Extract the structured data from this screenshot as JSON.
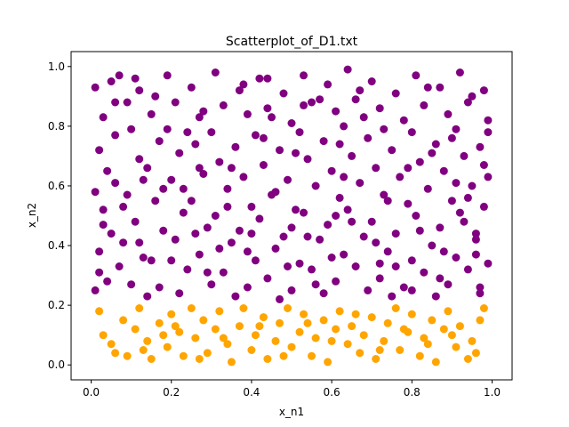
{
  "chart_data": {
    "type": "scatter",
    "title": "Scatterplot_of_D1.txt",
    "xlabel": "x_n1",
    "ylabel": "x_n2",
    "xlim": [
      -0.05,
      1.05
    ],
    "ylim": [
      -0.05,
      1.05
    ],
    "xticks": [
      0.0,
      0.2,
      0.4,
      0.6,
      0.8,
      1.0
    ],
    "xtick_labels": [
      "0.0",
      "0.2",
      "0.4",
      "0.6",
      "0.8",
      "1.0"
    ],
    "yticks": [
      0.0,
      0.2,
      0.4,
      0.6,
      0.8,
      1.0
    ],
    "ytick_labels": [
      "0.0",
      "0.2",
      "0.4",
      "0.6",
      "0.8",
      "1.0"
    ],
    "grid": false,
    "legend": "none",
    "series": [
      {
        "color": "#800080",
        "points": [
          [
            0.01,
            0.93
          ],
          [
            0.03,
            0.83
          ],
          [
            0.05,
            0.95
          ],
          [
            0.07,
            0.97
          ],
          [
            0.09,
            0.88
          ],
          [
            0.02,
            0.72
          ],
          [
            0.04,
            0.65
          ],
          [
            0.01,
            0.58
          ],
          [
            0.06,
            0.61
          ],
          [
            0.03,
            0.52
          ],
          [
            0.05,
            0.44
          ],
          [
            0.02,
            0.38
          ],
          [
            0.07,
            0.33
          ],
          [
            0.04,
            0.28
          ],
          [
            0.01,
            0.25
          ],
          [
            0.08,
            0.41
          ],
          [
            0.1,
            0.79
          ],
          [
            0.12,
            0.69
          ],
          [
            0.09,
            0.57
          ],
          [
            0.11,
            0.48
          ],
          [
            0.13,
            0.36
          ],
          [
            0.1,
            0.27
          ],
          [
            0.14,
            0.23
          ],
          [
            0.12,
            0.92
          ],
          [
            0.15,
            0.84
          ],
          [
            0.17,
            0.75
          ],
          [
            0.14,
            0.66
          ],
          [
            0.16,
            0.55
          ],
          [
            0.18,
            0.45
          ],
          [
            0.15,
            0.35
          ],
          [
            0.17,
            0.26
          ],
          [
            0.19,
            0.97
          ],
          [
            0.21,
            0.88
          ],
          [
            0.19,
            0.79
          ],
          [
            0.22,
            0.71
          ],
          [
            0.2,
            0.62
          ],
          [
            0.23,
            0.51
          ],
          [
            0.21,
            0.42
          ],
          [
            0.24,
            0.32
          ],
          [
            0.22,
            0.24
          ],
          [
            0.25,
            0.93
          ],
          [
            0.27,
            0.83
          ],
          [
            0.26,
            0.74
          ],
          [
            0.28,
            0.64
          ],
          [
            0.25,
            0.55
          ],
          [
            0.29,
            0.46
          ],
          [
            0.27,
            0.37
          ],
          [
            0.3,
            0.27
          ],
          [
            0.31,
            0.98
          ],
          [
            0.33,
            0.87
          ],
          [
            0.3,
            0.78
          ],
          [
            0.32,
            0.68
          ],
          [
            0.34,
            0.59
          ],
          [
            0.31,
            0.5
          ],
          [
            0.35,
            0.41
          ],
          [
            0.33,
            0.31
          ],
          [
            0.36,
            0.23
          ],
          [
            0.37,
            0.92
          ],
          [
            0.39,
            0.84
          ],
          [
            0.36,
            0.73
          ],
          [
            0.38,
            0.63
          ],
          [
            0.4,
            0.53
          ],
          [
            0.37,
            0.45
          ],
          [
            0.41,
            0.35
          ],
          [
            0.39,
            0.26
          ],
          [
            0.42,
            0.96
          ],
          [
            0.44,
            0.86
          ],
          [
            0.41,
            0.77
          ],
          [
            0.43,
            0.67
          ],
          [
            0.45,
            0.57
          ],
          [
            0.42,
            0.49
          ],
          [
            0.46,
            0.39
          ],
          [
            0.44,
            0.29
          ],
          [
            0.47,
            0.22
          ],
          [
            0.48,
            0.91
          ],
          [
            0.5,
            0.81
          ],
          [
            0.47,
            0.72
          ],
          [
            0.49,
            0.62
          ],
          [
            0.51,
            0.52
          ],
          [
            0.48,
            0.43
          ],
          [
            0.52,
            0.34
          ],
          [
            0.5,
            0.25
          ],
          [
            0.53,
            0.97
          ],
          [
            0.55,
            0.88
          ],
          [
            0.52,
            0.78
          ],
          [
            0.54,
            0.69
          ],
          [
            0.56,
            0.6
          ],
          [
            0.53,
            0.51
          ],
          [
            0.57,
            0.42
          ],
          [
            0.55,
            0.32
          ],
          [
            0.58,
            0.24
          ],
          [
            0.59,
            0.94
          ],
          [
            0.61,
            0.85
          ],
          [
            0.58,
            0.75
          ],
          [
            0.6,
            0.65
          ],
          [
            0.62,
            0.56
          ],
          [
            0.59,
            0.47
          ],
          [
            0.63,
            0.37
          ],
          [
            0.61,
            0.28
          ],
          [
            0.64,
            0.99
          ],
          [
            0.66,
            0.89
          ],
          [
            0.63,
            0.8
          ],
          [
            0.65,
            0.7
          ],
          [
            0.67,
            0.61
          ],
          [
            0.64,
            0.52
          ],
          [
            0.68,
            0.43
          ],
          [
            0.66,
            0.33
          ],
          [
            0.69,
            0.25
          ],
          [
            0.7,
            0.95
          ],
          [
            0.72,
            0.86
          ],
          [
            0.69,
            0.76
          ],
          [
            0.71,
            0.66
          ],
          [
            0.73,
            0.57
          ],
          [
            0.7,
            0.48
          ],
          [
            0.74,
            0.38
          ],
          [
            0.72,
            0.29
          ],
          [
            0.75,
            0.23
          ],
          [
            0.76,
            0.91
          ],
          [
            0.78,
            0.82
          ],
          [
            0.75,
            0.72
          ],
          [
            0.77,
            0.63
          ],
          [
            0.79,
            0.54
          ],
          [
            0.76,
            0.44
          ],
          [
            0.8,
            0.35
          ],
          [
            0.78,
            0.26
          ],
          [
            0.81,
            0.97
          ],
          [
            0.83,
            0.87
          ],
          [
            0.8,
            0.78
          ],
          [
            0.82,
            0.68
          ],
          [
            0.84,
            0.59
          ],
          [
            0.81,
            0.5
          ],
          [
            0.85,
            0.4
          ],
          [
            0.83,
            0.31
          ],
          [
            0.86,
            0.23
          ],
          [
            0.87,
            0.93
          ],
          [
            0.89,
            0.84
          ],
          [
            0.86,
            0.74
          ],
          [
            0.88,
            0.65
          ],
          [
            0.9,
            0.55
          ],
          [
            0.87,
            0.46
          ],
          [
            0.91,
            0.36
          ],
          [
            0.89,
            0.27
          ],
          [
            0.92,
            0.98
          ],
          [
            0.94,
            0.88
          ],
          [
            0.91,
            0.79
          ],
          [
            0.93,
            0.7
          ],
          [
            0.95,
            0.6
          ],
          [
            0.92,
            0.51
          ],
          [
            0.96,
            0.42
          ],
          [
            0.94,
            0.32
          ],
          [
            0.97,
            0.24
          ],
          [
            0.98,
            0.92
          ],
          [
            0.99,
            0.82
          ],
          [
            0.97,
            0.73
          ],
          [
            0.99,
            0.63
          ],
          [
            0.98,
            0.53
          ],
          [
            0.96,
            0.44
          ],
          [
            0.99,
            0.34
          ],
          [
            0.97,
            0.26
          ],
          [
            0.02,
            0.31
          ],
          [
            0.06,
            0.77
          ],
          [
            0.08,
            0.53
          ],
          [
            0.13,
            0.62
          ],
          [
            0.16,
            0.9
          ],
          [
            0.2,
            0.35
          ],
          [
            0.23,
            0.59
          ],
          [
            0.26,
            0.44
          ],
          [
            0.28,
            0.85
          ],
          [
            0.32,
            0.39
          ],
          [
            0.35,
            0.66
          ],
          [
            0.38,
            0.94
          ],
          [
            0.4,
            0.44
          ],
          [
            0.43,
            0.76
          ],
          [
            0.46,
            0.58
          ],
          [
            0.49,
            0.33
          ],
          [
            0.51,
            0.71
          ],
          [
            0.54,
            0.43
          ],
          [
            0.57,
            0.89
          ],
          [
            0.6,
            0.36
          ],
          [
            0.62,
            0.74
          ],
          [
            0.65,
            0.48
          ],
          [
            0.67,
            0.92
          ],
          [
            0.71,
            0.41
          ],
          [
            0.73,
            0.79
          ],
          [
            0.76,
            0.33
          ],
          [
            0.79,
            0.66
          ],
          [
            0.82,
            0.45
          ],
          [
            0.84,
            0.93
          ],
          [
            0.88,
            0.38
          ],
          [
            0.9,
            0.76
          ],
          [
            0.93,
            0.48
          ],
          [
            0.95,
            0.9
          ],
          [
            0.98,
            0.67
          ],
          [
            0.03,
            0.47
          ],
          [
            0.11,
            0.96
          ],
          [
            0.18,
            0.59
          ],
          [
            0.24,
            0.78
          ],
          [
            0.29,
            0.31
          ],
          [
            0.34,
            0.53
          ],
          [
            0.45,
            0.83
          ],
          [
            0.5,
            0.46
          ],
          [
            0.56,
            0.27
          ],
          [
            0.63,
            0.63
          ],
          [
            0.68,
            0.83
          ],
          [
            0.74,
            0.55
          ],
          [
            0.8,
            0.25
          ],
          [
            0.85,
            0.71
          ],
          [
            0.91,
            0.61
          ],
          [
            0.96,
            0.37
          ],
          [
            0.99,
            0.78
          ],
          [
            0.12,
            0.41
          ],
          [
            0.27,
            0.66
          ],
          [
            0.39,
            0.38
          ],
          [
            0.53,
            0.87
          ],
          [
            0.61,
            0.5
          ],
          [
            0.72,
            0.34
          ],
          [
            0.87,
            0.29
          ],
          [
            0.94,
            0.56
          ],
          [
            0.06,
            0.88
          ],
          [
            0.44,
            0.96
          ]
        ]
      },
      {
        "color": "#FFA500",
        "points": [
          [
            0.02,
            0.18
          ],
          [
            0.03,
            0.1
          ],
          [
            0.05,
            0.07
          ],
          [
            0.08,
            0.15
          ],
          [
            0.09,
            0.03
          ],
          [
            0.11,
            0.12
          ],
          [
            0.12,
            0.19
          ],
          [
            0.14,
            0.08
          ],
          [
            0.15,
            0.02
          ],
          [
            0.17,
            0.14
          ],
          [
            0.19,
            0.06
          ],
          [
            0.2,
            0.17
          ],
          [
            0.22,
            0.11
          ],
          [
            0.23,
            0.03
          ],
          [
            0.25,
            0.19
          ],
          [
            0.26,
            0.09
          ],
          [
            0.28,
            0.15
          ],
          [
            0.29,
            0.04
          ],
          [
            0.31,
            0.12
          ],
          [
            0.32,
            0.18
          ],
          [
            0.34,
            0.07
          ],
          [
            0.35,
            0.01
          ],
          [
            0.37,
            0.13
          ],
          [
            0.38,
            0.19
          ],
          [
            0.4,
            0.05
          ],
          [
            0.41,
            0.1
          ],
          [
            0.43,
            0.16
          ],
          [
            0.44,
            0.02
          ],
          [
            0.46,
            0.08
          ],
          [
            0.47,
            0.14
          ],
          [
            0.49,
            0.19
          ],
          [
            0.5,
            0.06
          ],
          [
            0.52,
            0.11
          ],
          [
            0.53,
            0.17
          ],
          [
            0.55,
            0.03
          ],
          [
            0.56,
            0.09
          ],
          [
            0.58,
            0.15
          ],
          [
            0.59,
            0.01
          ],
          [
            0.61,
            0.12
          ],
          [
            0.62,
            0.18
          ],
          [
            0.64,
            0.07
          ],
          [
            0.65,
            0.13
          ],
          [
            0.67,
            0.04
          ],
          [
            0.68,
            0.1
          ],
          [
            0.7,
            0.16
          ],
          [
            0.71,
            0.02
          ],
          [
            0.73,
            0.08
          ],
          [
            0.74,
            0.14
          ],
          [
            0.76,
            0.19
          ],
          [
            0.77,
            0.05
          ],
          [
            0.79,
            0.11
          ],
          [
            0.8,
            0.17
          ],
          [
            0.82,
            0.03
          ],
          [
            0.83,
            0.09
          ],
          [
            0.85,
            0.15
          ],
          [
            0.86,
            0.01
          ],
          [
            0.88,
            0.12
          ],
          [
            0.89,
            0.18
          ],
          [
            0.91,
            0.06
          ],
          [
            0.92,
            0.13
          ],
          [
            0.94,
            0.02
          ],
          [
            0.95,
            0.08
          ],
          [
            0.97,
            0.15
          ],
          [
            0.98,
            0.19
          ],
          [
            0.06,
            0.04
          ],
          [
            0.13,
            0.05
          ],
          [
            0.21,
            0.13
          ],
          [
            0.27,
            0.02
          ],
          [
            0.33,
            0.09
          ],
          [
            0.42,
            0.13
          ],
          [
            0.48,
            0.03
          ],
          [
            0.54,
            0.14
          ],
          [
            0.6,
            0.08
          ],
          [
            0.66,
            0.17
          ],
          [
            0.72,
            0.05
          ],
          [
            0.78,
            0.12
          ],
          [
            0.84,
            0.07
          ],
          [
            0.9,
            0.1
          ],
          [
            0.96,
            0.04
          ],
          [
            0.18,
            0.1
          ]
        ]
      }
    ]
  }
}
